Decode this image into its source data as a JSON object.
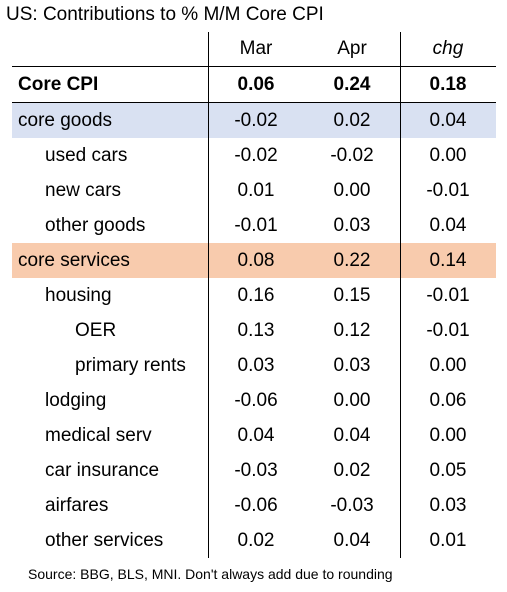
{
  "title": "US: Contributions to % M/M Core CPI",
  "columns": {
    "c1": "Mar",
    "c2": "Apr",
    "c3": "chg"
  },
  "colors": {
    "core_goods_bg": "#d9e1f2",
    "core_services_bg": "#f8cbad"
  },
  "rows": [
    {
      "label": "Core CPI",
      "mar": "0.06",
      "apr": "0.24",
      "chg": "0.18"
    },
    {
      "label": "core goods",
      "mar": "-0.02",
      "apr": "0.02",
      "chg": "0.04"
    },
    {
      "label": "used cars",
      "mar": "-0.02",
      "apr": "-0.02",
      "chg": "0.00"
    },
    {
      "label": "new cars",
      "mar": "0.01",
      "apr": "0.00",
      "chg": "-0.01"
    },
    {
      "label": "other goods",
      "mar": "-0.01",
      "apr": "0.03",
      "chg": "0.04"
    },
    {
      "label": "core services",
      "mar": "0.08",
      "apr": "0.22",
      "chg": "0.14"
    },
    {
      "label": "housing",
      "mar": "0.16",
      "apr": "0.15",
      "chg": "-0.01"
    },
    {
      "label": "OER",
      "mar": "0.13",
      "apr": "0.12",
      "chg": "-0.01"
    },
    {
      "label": "primary rents",
      "mar": "0.03",
      "apr": "0.03",
      "chg": "0.00"
    },
    {
      "label": "lodging",
      "mar": "-0.06",
      "apr": "0.00",
      "chg": "0.06"
    },
    {
      "label": "medical serv",
      "mar": "0.04",
      "apr": "0.04",
      "chg": "0.00"
    },
    {
      "label": "car insurance",
      "mar": "-0.03",
      "apr": "0.02",
      "chg": "0.05"
    },
    {
      "label": "airfares",
      "mar": "-0.06",
      "apr": "-0.03",
      "chg": "0.03"
    },
    {
      "label": "other services",
      "mar": "0.02",
      "apr": "0.04",
      "chg": "0.01"
    }
  ],
  "source": "Source: BBG, BLS, MNI. Don't always add due to rounding"
}
